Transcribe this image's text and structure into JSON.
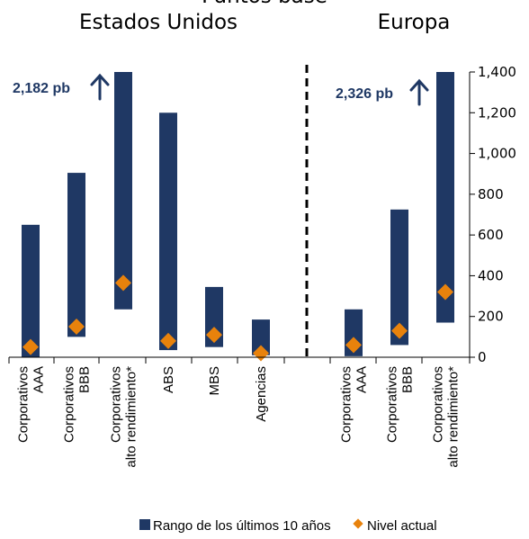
{
  "chart_data": {
    "type": "range-bar",
    "titles": [
      "Estados Unidos",
      "Europa"
    ],
    "top_partial_text": "Puntos base",
    "y_axis": {
      "side": "right",
      "ylim": [
        0,
        1400
      ],
      "ticks": [
        0,
        200,
        400,
        600,
        800,
        1000,
        1200,
        1400
      ],
      "tick_labels": [
        "0",
        "200",
        "400",
        "600",
        "800",
        "1,000",
        "1,200",
        "1,400"
      ]
    },
    "groups": [
      {
        "name": "Estados Unidos",
        "categories": [
          {
            "label": [
              "Corporativos",
              "AAA"
            ],
            "low": 0,
            "high": 650,
            "current": 50
          },
          {
            "label": [
              "Corporativos",
              "BBB"
            ],
            "low": 100,
            "high": 905,
            "current": 150
          },
          {
            "label": [
              "Corporativos",
              "alto rendimiento*"
            ],
            "low": 235,
            "high": 1400,
            "current": 365
          },
          {
            "label": [
              "ABS"
            ],
            "low": 35,
            "high": 1200,
            "current": 80
          },
          {
            "label": [
              "MBS"
            ],
            "low": 50,
            "high": 345,
            "current": 110
          },
          {
            "label": [
              "Agencias"
            ],
            "low": 10,
            "high": 185,
            "current": 20
          }
        ]
      },
      {
        "name": "Europa",
        "categories": [
          {
            "label": [
              "Corporativos",
              "AAA"
            ],
            "low": 5,
            "high": 235,
            "current": 60
          },
          {
            "label": [
              "Corporativos",
              "BBB"
            ],
            "low": 60,
            "high": 725,
            "current": 130
          },
          {
            "label": [
              "Corporativos",
              "alto rendimiento*"
            ],
            "low": 170,
            "high": 1400,
            "current": 320
          }
        ]
      }
    ],
    "annotations": [
      "2,182 pb",
      "2,326 pb"
    ],
    "series": [
      {
        "name": "Rango de los últimos 10 años",
        "color": "#1f3864"
      },
      {
        "name": "Nivel actual",
        "color": "#e8820c"
      }
    ],
    "legend_position": "bottom",
    "separator": "dashed"
  }
}
